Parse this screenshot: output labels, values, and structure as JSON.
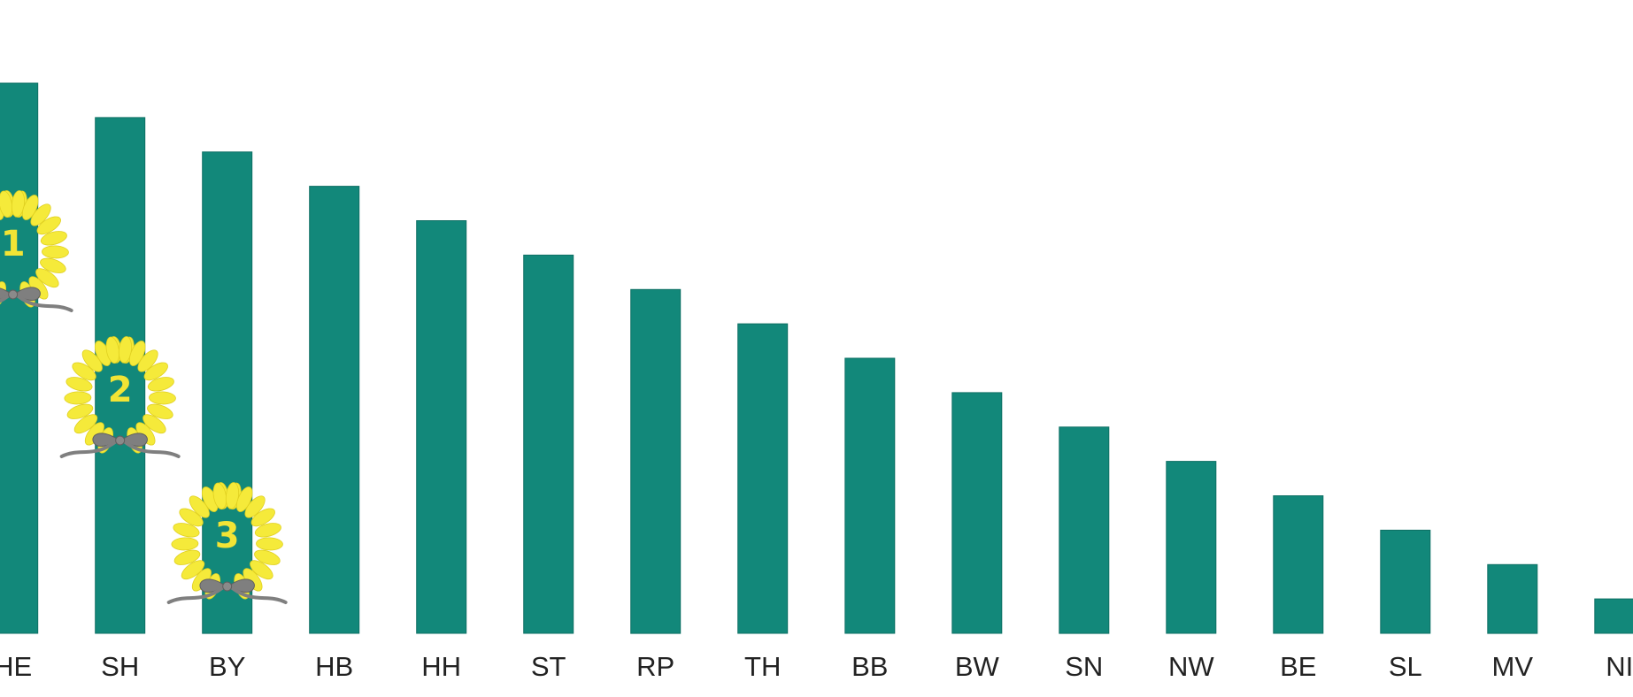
{
  "chart_data": {
    "type": "bar",
    "title": "",
    "xlabel": "",
    "ylabel": "",
    "categories": [
      "HE",
      "SH",
      "BY",
      "HB",
      "HH",
      "ST",
      "RP",
      "TH",
      "BB",
      "BW",
      "SN",
      "NW",
      "BE",
      "SL",
      "MV",
      "NI"
    ],
    "values": [
      16,
      15,
      14,
      13,
      12,
      11,
      10,
      9,
      8,
      7,
      6,
      5,
      4,
      3,
      2,
      1
    ],
    "ylim": [
      0,
      17
    ],
    "grid": false,
    "legend": "none",
    "bar_color": "#12887a",
    "rank_badges": [
      {
        "category": "HE",
        "rank": "1"
      },
      {
        "category": "SH",
        "rank": "2"
      },
      {
        "category": "BY",
        "rank": "3"
      }
    ],
    "badge_colors": {
      "laurel": "#f5ea3a",
      "ribbon": "#7f7f7f"
    }
  }
}
